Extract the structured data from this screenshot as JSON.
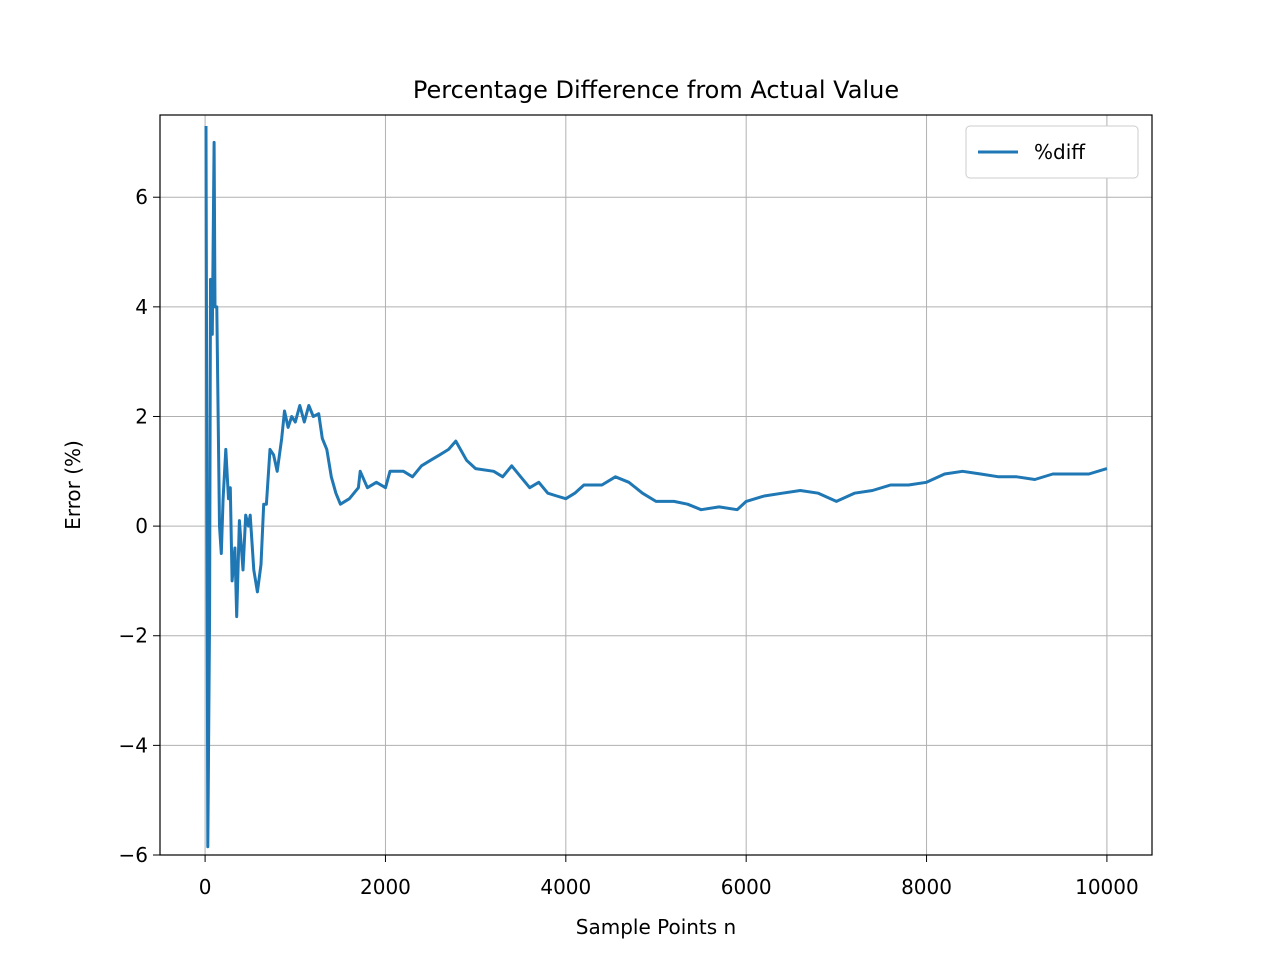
{
  "chart_data": {
    "type": "line",
    "title": "Percentage Difference from Actual Value",
    "x_label": "Sample Points n",
    "y_label": "Error (%)",
    "x": [
      10,
      30,
      50,
      60,
      80,
      100,
      110,
      130,
      160,
      180,
      200,
      230,
      260,
      280,
      300,
      330,
      350,
      380,
      420,
      450,
      480,
      500,
      540,
      580,
      620,
      650,
      680,
      720,
      760,
      800,
      850,
      880,
      920,
      960,
      1000,
      1050,
      1100,
      1150,
      1200,
      1260,
      1300,
      1350,
      1400,
      1450,
      1500,
      1600,
      1700,
      1720,
      1800,
      1900,
      2000,
      2050,
      2200,
      2300,
      2400,
      2500,
      2600,
      2700,
      2780,
      2900,
      3000,
      3200,
      3300,
      3400,
      3500,
      3600,
      3700,
      3800,
      3900,
      4000,
      4100,
      4200,
      4400,
      4550,
      4700,
      4850,
      5000,
      5200,
      5350,
      5500,
      5700,
      5900,
      6000,
      6200,
      6400,
      6600,
      6800,
      7000,
      7200,
      7400,
      7600,
      7800,
      8000,
      8200,
      8400,
      8600,
      8800,
      9000,
      9200,
      9400,
      9600,
      9800,
      10000
    ],
    "series": [
      {
        "name": "%diff",
        "color": "#1f77b4",
        "values": [
          7.3,
          -5.85,
          -1.6,
          4.5,
          3.5,
          7.0,
          4.0,
          4.0,
          0,
          -0.5,
          0.5,
          1.4,
          0.5,
          0.7,
          -1.0,
          -0.4,
          -1.65,
          0.1,
          -0.8,
          0.2,
          0.0,
          0.2,
          -0.8,
          -1.2,
          -0.7,
          0.4,
          0.4,
          1.4,
          1.3,
          1.0,
          1.6,
          2.1,
          1.8,
          2.0,
          1.9,
          2.2,
          1.9,
          2.2,
          2.0,
          2.05,
          1.6,
          1.4,
          0.9,
          0.6,
          0.4,
          0.5,
          0.7,
          1.0,
          0.7,
          0.8,
          0.7,
          1.0,
          1.0,
          0.9,
          1.1,
          1.2,
          1.3,
          1.4,
          1.55,
          1.2,
          1.05,
          1.0,
          0.9,
          1.1,
          0.9,
          0.7,
          0.8,
          0.6,
          0.55,
          0.5,
          0.6,
          0.75,
          0.75,
          0.9,
          0.8,
          0.6,
          0.45,
          0.45,
          0.4,
          0.3,
          0.35,
          0.3,
          0.45,
          0.55,
          0.6,
          0.65,
          0.6,
          0.45,
          0.6,
          0.65,
          0.75,
          0.75,
          0.8,
          0.95,
          1.0,
          0.95,
          0.9,
          0.9,
          0.85,
          0.95,
          0.95,
          0.95,
          1.05
        ]
      }
    ],
    "xlim": [
      -500,
      10500
    ],
    "ylim": [
      -6,
      7.5
    ],
    "xticks": [
      0,
      2000,
      4000,
      6000,
      8000,
      10000
    ],
    "yticks": [
      {
        "value": -6,
        "label": "−6"
      },
      {
        "value": -4,
        "label": "−4"
      },
      {
        "value": -2,
        "label": "−2"
      },
      0,
      2,
      4,
      6
    ],
    "grid": true,
    "legend": "upper-right"
  }
}
